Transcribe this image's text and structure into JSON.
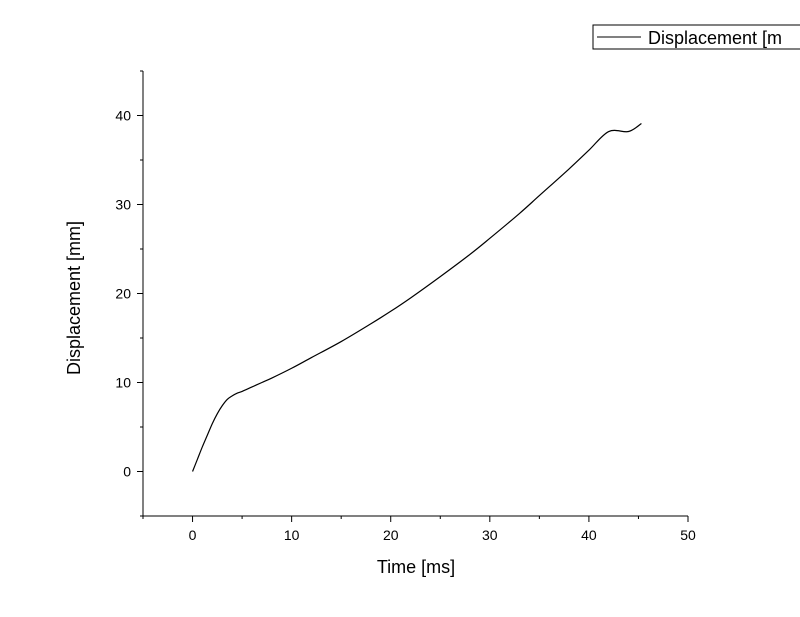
{
  "chart_data": {
    "type": "line",
    "title": "",
    "xlabel": "Time [ms]",
    "ylabel": "Displacement [mm]",
    "xlim": [
      -5,
      50
    ],
    "ylim": [
      -5,
      45
    ],
    "x_ticks": [
      0,
      10,
      20,
      30,
      40,
      50
    ],
    "y_ticks": [
      0,
      10,
      20,
      30,
      40
    ],
    "x_tick_labels": [
      "0",
      "10",
      "20",
      "30",
      "40",
      "50"
    ],
    "y_tick_labels": [
      "0",
      "10",
      "20",
      "30",
      "40"
    ],
    "grid": false,
    "legend_position": "top-right",
    "legend_visible_text": "Displacement [m",
    "line_color": "#000000",
    "series": [
      {
        "name": "Displacement [mm]",
        "x": [
          0,
          0.5,
          1,
          1.5,
          2,
          2.5,
          3,
          3.5,
          4,
          4.5,
          5,
          6,
          7,
          8,
          10,
          12,
          15,
          18,
          20,
          22,
          25,
          28,
          30,
          33,
          35,
          38,
          40,
          42,
          44,
          45.3
        ],
        "y": [
          0,
          1.4,
          2.8,
          4.1,
          5.4,
          6.5,
          7.4,
          8.1,
          8.5,
          8.8,
          9.0,
          9.5,
          10.0,
          10.5,
          11.6,
          12.8,
          14.6,
          16.6,
          18.0,
          19.5,
          21.9,
          24.4,
          26.2,
          29.0,
          31.0,
          34.0,
          36.1,
          38.2,
          38.2,
          39.1
        ]
      }
    ]
  }
}
